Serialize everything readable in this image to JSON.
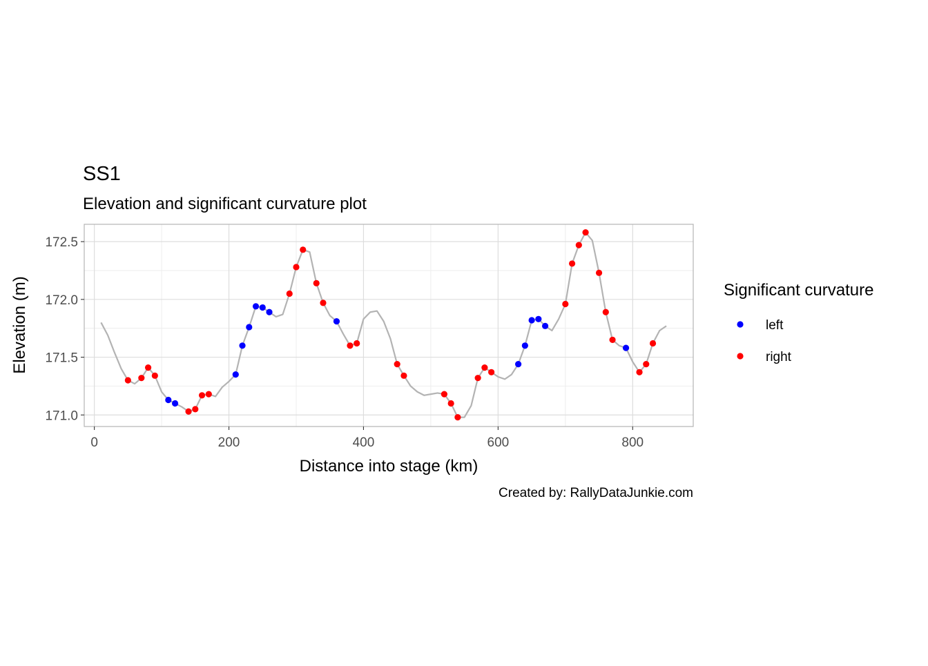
{
  "chart_data": {
    "type": "line",
    "title": "SS1",
    "subtitle": "Elevation and significant curvature plot",
    "xlabel": "Distance into stage (km)",
    "ylabel": "Elevation (m)",
    "caption": "Created by: RallyDataJunkie.com",
    "xlim": [
      -15,
      890
    ],
    "ylim": [
      170.9,
      172.65
    ],
    "x_ticks": [
      0,
      200,
      400,
      600,
      800
    ],
    "x_tick_labels": [
      "0",
      "200",
      "400",
      "600",
      "800"
    ],
    "y_ticks": [
      171.0,
      171.5,
      172.0,
      172.5
    ],
    "y_tick_labels": [
      "171.0",
      "171.5",
      "172.0",
      "172.5"
    ],
    "grid": true,
    "legend_placement": "right",
    "legend": {
      "title": "Significant curvature",
      "entries": [
        {
          "label": "left",
          "color": "#0000ff"
        },
        {
          "label": "right",
          "color": "#ff0000"
        }
      ]
    },
    "colors": {
      "line": "#b3b3b3",
      "left": "#0000ff",
      "right": "#ff0000",
      "grid": "#dddddd",
      "panel_border": "#b3b3b3"
    },
    "series": [
      {
        "type": "line",
        "x": [
          10,
          20,
          30,
          40,
          50,
          60,
          70,
          80,
          90,
          100,
          110,
          120,
          130,
          140,
          150,
          160,
          170,
          180,
          190,
          200,
          210,
          220,
          230,
          240,
          250,
          260,
          270,
          280,
          290,
          300,
          310,
          320,
          330,
          340,
          350,
          360,
          370,
          380,
          390,
          400,
          410,
          420,
          430,
          440,
          450,
          460,
          470,
          480,
          490,
          500,
          510,
          520,
          530,
          540,
          550,
          560,
          570,
          580,
          590,
          600,
          610,
          620,
          630,
          640,
          650,
          660,
          670,
          680,
          690,
          700,
          710,
          720,
          730,
          740,
          750,
          760,
          770,
          780,
          790,
          800,
          810,
          820,
          830,
          840,
          850
        ],
        "y": [
          171.8,
          171.69,
          171.54,
          171.4,
          171.3,
          171.27,
          171.32,
          171.41,
          171.34,
          171.2,
          171.13,
          171.1,
          171.07,
          171.03,
          171.05,
          171.17,
          171.18,
          171.16,
          171.24,
          171.29,
          171.35,
          171.6,
          171.76,
          171.94,
          171.93,
          171.89,
          171.85,
          171.87,
          172.05,
          172.28,
          172.43,
          172.41,
          172.14,
          171.97,
          171.86,
          171.81,
          171.7,
          171.6,
          171.62,
          171.83,
          171.89,
          171.9,
          171.81,
          171.66,
          171.44,
          171.34,
          171.25,
          171.2,
          171.17,
          171.18,
          171.19,
          171.18,
          171.1,
          170.98,
          170.98,
          171.08,
          171.32,
          171.41,
          171.37,
          171.33,
          171.31,
          171.35,
          171.44,
          171.6,
          171.82,
          171.83,
          171.77,
          171.73,
          171.83,
          171.96,
          172.31,
          172.47,
          172.58,
          172.51,
          172.23,
          171.89,
          171.65,
          171.6,
          171.58,
          171.46,
          171.37,
          171.44,
          171.62,
          171.73,
          171.77
        ]
      },
      {
        "type": "scatter",
        "name": "left",
        "x": [
          110,
          120,
          210,
          220,
          230,
          240,
          250,
          260,
          360,
          630,
          640,
          650,
          660,
          670,
          790
        ],
        "y": [
          171.13,
          171.1,
          171.35,
          171.6,
          171.76,
          171.94,
          171.93,
          171.89,
          171.81,
          171.44,
          171.6,
          171.82,
          171.83,
          171.77,
          171.58
        ]
      },
      {
        "type": "scatter",
        "name": "right",
        "x": [
          50,
          70,
          80,
          90,
          140,
          150,
          160,
          170,
          290,
          300,
          310,
          330,
          340,
          380,
          390,
          450,
          460,
          520,
          530,
          540,
          570,
          580,
          590,
          700,
          710,
          720,
          730,
          750,
          760,
          770,
          810,
          820,
          830
        ],
        "y": [
          171.3,
          171.32,
          171.41,
          171.34,
          171.03,
          171.05,
          171.17,
          171.18,
          172.05,
          172.28,
          172.43,
          172.14,
          171.97,
          171.6,
          171.62,
          171.44,
          171.34,
          171.18,
          171.1,
          170.98,
          171.32,
          171.41,
          171.37,
          171.96,
          172.31,
          172.47,
          172.58,
          172.23,
          171.89,
          171.65,
          171.37,
          171.44,
          171.62
        ]
      }
    ]
  }
}
